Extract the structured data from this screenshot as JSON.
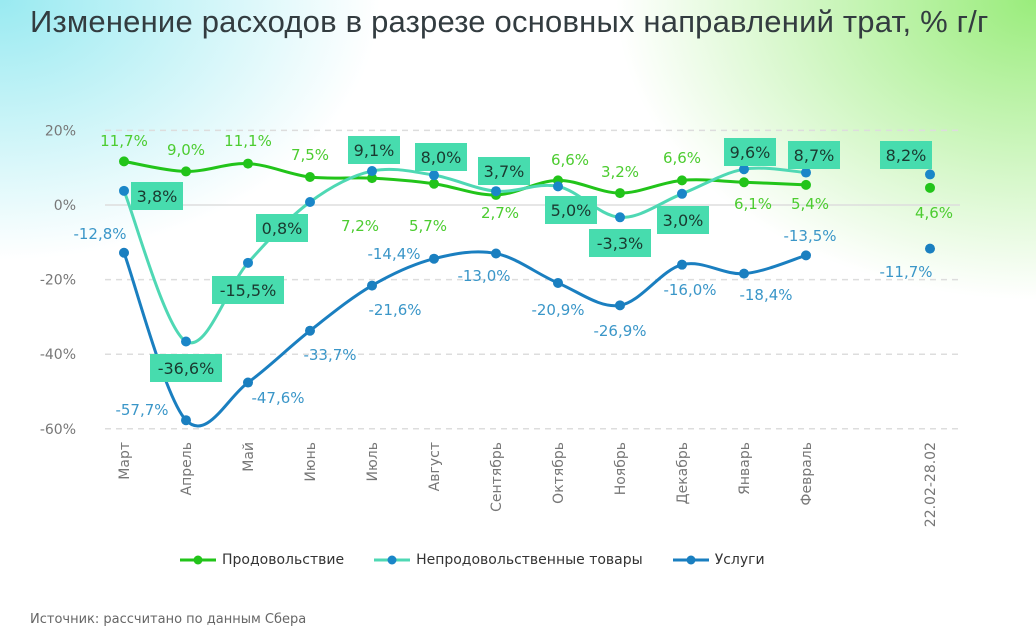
{
  "title": "Изменение расходов в разрезе основных направлений трат, % г/г",
  "source": "Источник: рассчитано по данным Сбера",
  "chart_data": {
    "type": "line",
    "title": "Изменение расходов в разрезе основных направлений трат, % г/г",
    "categories": [
      "Март",
      "Апрель",
      "Май",
      "Июнь",
      "Июль",
      "Август",
      "Сентябрь",
      "Октябрь",
      "Ноябрь",
      "Декабрь",
      "Январь",
      "Февраль",
      "22.02-28.02"
    ],
    "ylim": [
      -60,
      20
    ],
    "yticks": [
      "20%",
      "0%",
      "-20%",
      "-40%",
      "-60%"
    ],
    "grid": true,
    "legend_position": "bottom",
    "series": [
      {
        "name": "Продовольствие",
        "color": "#22c41a",
        "values": [
          11.7,
          9.0,
          11.1,
          7.5,
          7.2,
          5.7,
          2.7,
          6.6,
          3.2,
          6.6,
          6.1,
          5.4,
          4.6
        ],
        "labels": [
          "11,7%",
          "9,0%",
          "11,1%",
          "7,5%",
          "7,2%",
          "5,7%",
          "2,7%",
          "6,6%",
          "3,2%",
          "6,6%",
          "6,1%",
          "5,4%",
          "4,6%"
        ]
      },
      {
        "name": "Непродовольственные товары",
        "color": "#4fd8b4",
        "values": [
          3.8,
          -36.6,
          -15.5,
          0.8,
          9.1,
          8.0,
          3.7,
          5.0,
          -3.3,
          3.0,
          9.6,
          8.7,
          8.2
        ],
        "labels": [
          "3,8%",
          "-36,6%",
          "-15,5%",
          "0,8%",
          "9,1%",
          "8,0%",
          "3,7%",
          "5,0%",
          "-3,3%",
          "3,0%",
          "9,6%",
          "8,7%",
          "8,2%"
        ]
      },
      {
        "name": "Услуги",
        "color": "#1a7fc0",
        "values": [
          -12.8,
          -57.7,
          -47.6,
          -33.7,
          -21.6,
          -14.4,
          -13.0,
          -20.9,
          -26.9,
          -16.0,
          -18.4,
          -13.5,
          -11.7
        ],
        "labels": [
          "-12,8%",
          "-57,7%",
          "-47,6%",
          "-33,7%",
          "-21,6%",
          "-14,4%",
          "-13,0%",
          "-20,9%",
          "-26,9%",
          "-16,0%",
          "-18,4%",
          "-13,5%",
          "-11,7%"
        ]
      }
    ]
  }
}
